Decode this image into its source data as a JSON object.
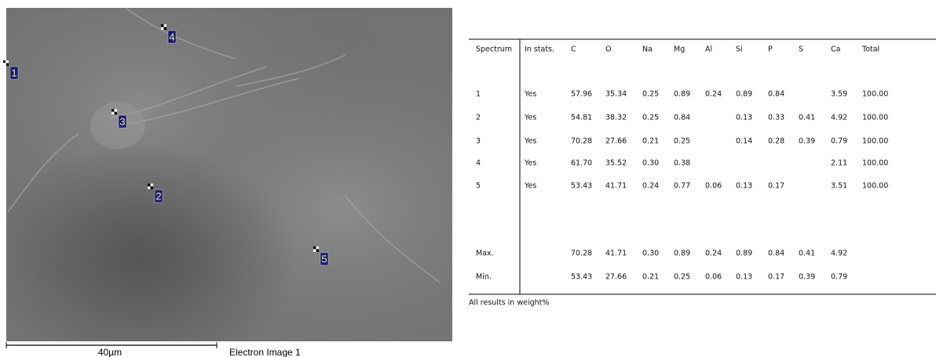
{
  "image": {
    "caption": "Electron Image 1",
    "scale_bar": "40µm",
    "markers": [
      {
        "label": "1"
      },
      {
        "label": "2"
      },
      {
        "label": "3"
      },
      {
        "label": "4"
      },
      {
        "label": "5"
      }
    ]
  },
  "table": {
    "headers": [
      "Spectrum",
      "In stats.",
      "C",
      "O",
      "Na",
      "Mg",
      "Al",
      "Si",
      "P",
      "S",
      "Ca",
      "Total"
    ],
    "rows": [
      [
        "1",
        "Yes",
        "57.96",
        "35.34",
        "0.25",
        "0.89",
        "0.24",
        "0.89",
        "0.84",
        null,
        "3.59",
        "100.00"
      ],
      [
        "2",
        "Yes",
        "54.81",
        "38.32",
        "0.25",
        "0.84",
        null,
        "0.13",
        "0.33",
        "0.41",
        "4.92",
        "100.00"
      ],
      [
        "3",
        "Yes",
        "70.28",
        "27.66",
        "0.21",
        "0.25",
        null,
        "0.14",
        "0.28",
        "0.39",
        "0.79",
        "100.00"
      ],
      [
        "4",
        "Yes",
        "61.70",
        "35.52",
        "0.30",
        "0.38",
        null,
        null,
        null,
        null,
        "2.11",
        "100.00"
      ],
      [
        "5",
        "Yes",
        "53.43",
        "41.71",
        "0.24",
        "0.77",
        "0.06",
        "0.13",
        "0.17",
        null,
        "3.51",
        "100.00"
      ]
    ],
    "summary": [
      [
        "Max.",
        null,
        "70.28",
        "41.71",
        "0.30",
        "0.89",
        "0.24",
        "0.89",
        "0.84",
        "0.41",
        "4.92",
        null
      ],
      [
        "Min.",
        null,
        "53.43",
        "27.66",
        "0.21",
        "0.25",
        "0.06",
        "0.13",
        "0.17",
        "0.39",
        "0.79",
        null
      ]
    ],
    "note": "All results in weight%"
  }
}
